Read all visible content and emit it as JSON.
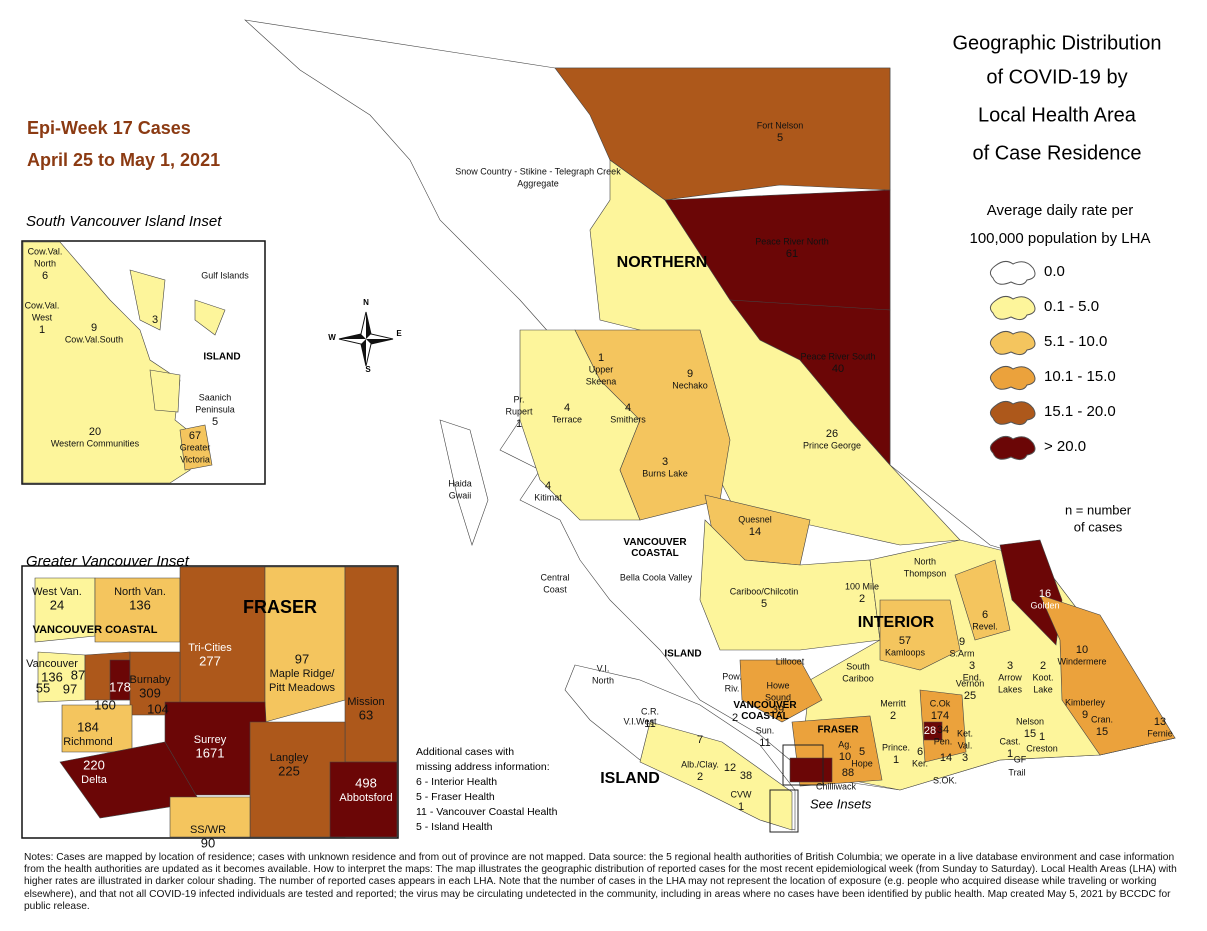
{
  "title": [
    "Geographic Distribution",
    "of COVID-19 by",
    "Local Health Area",
    "of Case Residence"
  ],
  "week": "Epi-Week 17 Cases",
  "dates": "April 25 to May 1, 2021",
  "legend": {
    "title": [
      "Average daily rate per",
      "100,000 population by LHA"
    ],
    "items": [
      {
        "label": "0.0",
        "color": "#ffffff"
      },
      {
        "label": "0.1 - 5.0",
        "color": "#fdf59b"
      },
      {
        "label": "5.1 - 10.0",
        "color": "#f4c55e"
      },
      {
        "label": "10.1 - 15.0",
        "color": "#eba23c"
      },
      {
        "label": "15.1 - 20.0",
        "color": "#ad581b"
      },
      {
        "label": "> 20.0",
        "color": "#6b0606"
      }
    ],
    "note": [
      "n = number",
      "of cases"
    ]
  },
  "compass": [
    "N",
    "E",
    "S",
    "W"
  ],
  "authorities": [
    "NORTHERN",
    "INTERIOR",
    "VANCOUVER COASTAL",
    "VANCOUVER COASTAL",
    "FRASER",
    "ISLAND",
    "ISLAND",
    "FRASER",
    "VANCOUVER COASTAL",
    "ISLAND"
  ],
  "see_insets": "See Insets",
  "main_map": {
    "labels": [
      {
        "name": "Fort Nelson",
        "cases": 5
      },
      {
        "name": [
          "Snow Country - Stikine - Telegraph Creek",
          "Aggregate"
        ]
      },
      {
        "name": "Peace River North",
        "cases": 61
      },
      {
        "name": "Peace River South",
        "cases": 40
      },
      {
        "name": "Nechako",
        "cases": 9
      },
      {
        "name": [
          "Upper",
          "Skeena"
        ],
        "cases": 1
      },
      {
        "name": "Terrace",
        "cases": 4
      },
      {
        "name": "Smithers",
        "cases": 4
      },
      {
        "name": [
          "Pr.",
          "Rupert"
        ],
        "cases": 1
      },
      {
        "name": "Burns Lake",
        "cases": 3
      },
      {
        "name": "Kitimat",
        "cases": 4
      },
      {
        "name": "Prince George",
        "cases": 26
      },
      {
        "name": [
          "Haida",
          "Gwaii"
        ]
      },
      {
        "name": "Quesnel",
        "cases": 14
      },
      {
        "name": [
          "Central",
          "Coast"
        ]
      },
      {
        "name": "Bella Coola Valley"
      },
      {
        "name": "Cariboo/Chilcotin",
        "cases": 5
      },
      {
        "name": "100 Mile",
        "cases": 2
      },
      {
        "name": [
          "North",
          "Thompson"
        ]
      },
      {
        "name": "Golden",
        "cases": 16
      },
      {
        "name": "Revel.",
        "cases": 6
      },
      {
        "name": "Kamloops",
        "cases": 57
      },
      {
        "name": "S.Arm",
        "cases": 9
      },
      {
        "name": "End.",
        "cases": 3
      },
      {
        "name": "Lillooet"
      },
      {
        "name": "Windermere",
        "cases": 10
      },
      {
        "name": [
          "Pow.",
          "Riv."
        ]
      },
      {
        "name": [
          "Howe",
          "Sound"
        ],
        "cases": 39
      },
      {
        "name": [
          "V.I.",
          "North"
        ]
      },
      {
        "name": [
          "South",
          "Cariboo"
        ]
      },
      {
        "name": [
          "Arrow",
          "Lakes"
        ],
        "cases": 3
      },
      {
        "name": [
          "Koot.",
          "Lake"
        ],
        "cases": 2
      },
      {
        "name": "Vernon",
        "cases": 25
      },
      {
        "name": "C.Ok",
        "cases": 174
      },
      {
        "name": "Kimberley",
        "cases": 9
      },
      {
        "name": "Merritt",
        "cases": 2
      },
      {
        "name": "V.I.West"
      },
      {
        "name": "C.R.",
        "cases": 11
      },
      {
        "name": "Sun.",
        "cases": 11
      },
      {
        "name": "Pen.",
        "cases": 34
      },
      {
        "name": [
          "Ket.",
          "Val."
        ],
        "cases": 3
      },
      {
        "name": "Cran.",
        "cases": 15
      },
      {
        "name": "Fernie",
        "cases": 13
      },
      {
        "name": "Nelson",
        "cases": 15
      },
      {
        "name": "Creston",
        "cases": 1
      },
      {
        "name": "Cast.",
        "cases": 1
      },
      {
        "name": "Prince.",
        "cases": 1
      },
      {
        "name": "Ker.",
        "cases": 6
      },
      {
        "cases": 28
      },
      {
        "cases": 14
      },
      {
        "name": "GF"
      },
      {
        "name": "Trail"
      },
      {
        "name": "S.OK."
      },
      {
        "name": "Hope",
        "cases": 5
      },
      {
        "name": "Ag.",
        "cases": 10
      },
      {
        "cases": 88
      },
      {
        "name": "Chilliwack"
      },
      {
        "cases": 7
      },
      {
        "name": "Alb./Clay.",
        "cases": 2
      },
      {
        "cases": 12
      },
      {
        "cases": 38
      },
      {
        "name": "CVW",
        "cases": 1
      },
      {
        "cases": 2
      }
    ]
  },
  "south_island_inset": {
    "title": "South Vancouver Island Inset",
    "labels": [
      {
        "name": [
          "Cow.Val.",
          "North"
        ],
        "cases": 6
      },
      {
        "name": "Gulf Islands"
      },
      {
        "name": [
          "Cow.Val.",
          "West"
        ],
        "cases": 1
      },
      {
        "cases": 3
      },
      {
        "name": "Cow.Val.South",
        "cases": 9
      },
      {
        "name": [
          "Saanich",
          "Peninsula"
        ],
        "cases": 5
      },
      {
        "name": "Western Communities",
        "cases": 20
      },
      {
        "name": [
          "Greater",
          "Victoria"
        ],
        "cases": 67
      }
    ]
  },
  "greater_vancouver_inset": {
    "title": "Greater Vancouver Inset",
    "labels": [
      {
        "name": "West Van.",
        "cases": 24
      },
      {
        "name": "North Van.",
        "cases": 136
      },
      {
        "name": "Tri-Cities",
        "cases": 277
      },
      {
        "name": [
          "Maple Ridge/",
          "Pitt Meadows"
        ],
        "cases": 97
      },
      {
        "name": "Mission",
        "cases": 63
      },
      {
        "name": "Vancouver",
        "cases": 136
      },
      {
        "cases": 87
      },
      {
        "cases": 178
      },
      {
        "cases": 97
      },
      {
        "cases": 55
      },
      {
        "cases": 160
      },
      {
        "name": "Burnaby",
        "cases": 309
      },
      {
        "cases": 104
      },
      {
        "name": "Richmond",
        "cases": 184
      },
      {
        "name": "Surrey",
        "cases": 1671
      },
      {
        "name": "Delta",
        "cases": 220
      },
      {
        "name": "Langley",
        "cases": 225
      },
      {
        "name": "SS/WR",
        "cases": 90
      },
      {
        "name": "Abbotsford",
        "cases": 498
      }
    ]
  },
  "missing_address": [
    "Additional cases with",
    "missing address information:",
    "6 - Interior Health",
    "5 - Fraser Health",
    "11 - Vancouver Coastal Health",
    "5 - Island Health"
  ],
  "notes": "Notes: Cases are mapped by location of residence; cases with unknown residence and from out of province are not mapped. Data source: the 5 regional health authorities of British Columbia; we operate in a live database environment and case information from the health authorities are updated as it becomes available. How to interpret the maps: The map illustrates the geographic distribution of reported cases for the most recent epidemiological week (from Sunday to Saturday). Local Health Areas (LHA) with higher rates are illustrated in darker colour shading. The number of reported cases appears in each LHA. Note that the number of cases in the LHA may not represent the location of exposure (e.g. people who acquired disease while traveling or working elsewhere), and that not all COVID-19 infected individuals are tested and reported; the virus may be circulating undetected in the community, including in areas where no cases have been identified by public health. Map created May 5, 2021 by BCCDC for public release."
}
